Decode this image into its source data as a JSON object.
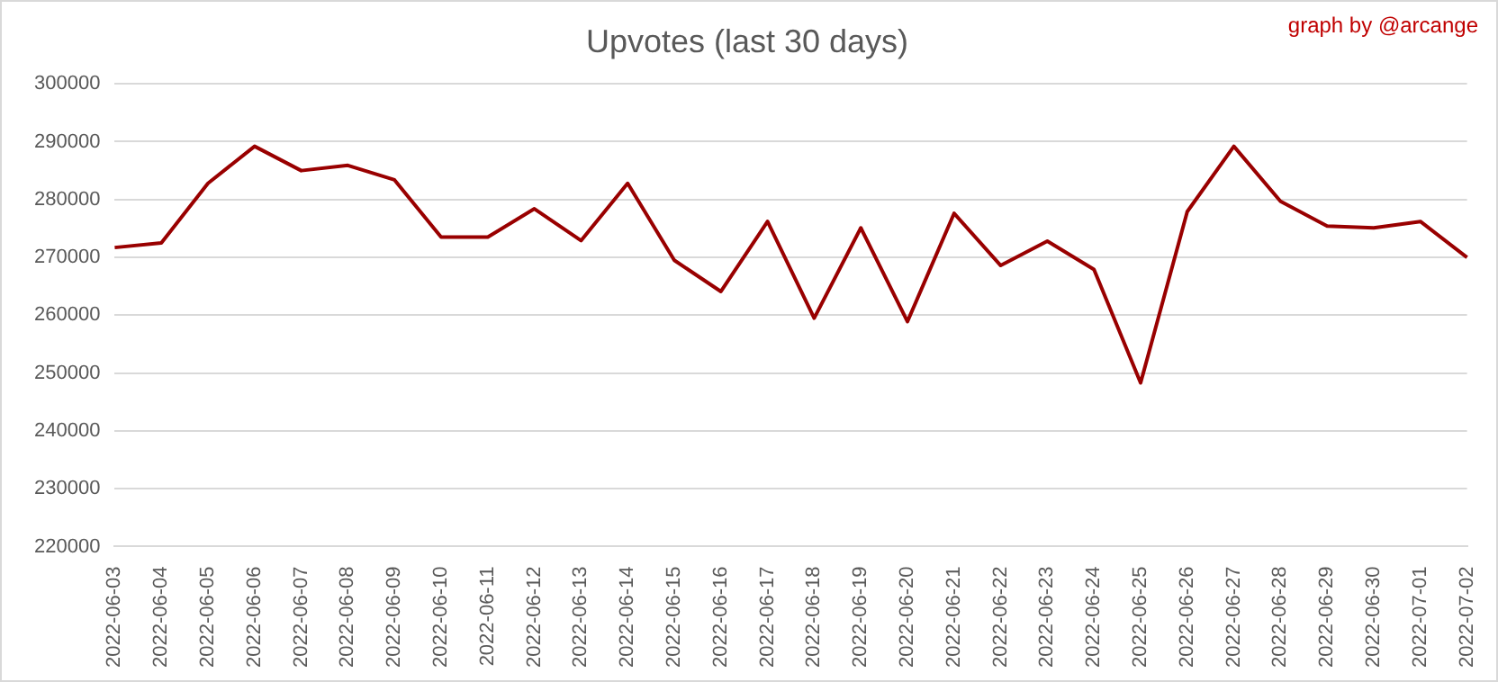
{
  "chart_data": {
    "type": "line",
    "title": "Upvotes (last 30 days)",
    "annotations": [
      "graph by @arcange"
    ],
    "categories": [
      "2022-06-03",
      "2022-06-04",
      "2022-06-05",
      "2022-06-06",
      "2022-06-07",
      "2022-06-08",
      "2022-06-09",
      "2022-06-10",
      "2022-06-11",
      "2022-06-12",
      "2022-06-13",
      "2022-06-14",
      "2022-06-15",
      "2022-06-16",
      "2022-06-17",
      "2022-06-18",
      "2022-06-19",
      "2022-06-20",
      "2022-06-21",
      "2022-06-22",
      "2022-06-23",
      "2022-06-24",
      "2022-06-25",
      "2022-06-26",
      "2022-06-27",
      "2022-06-28",
      "2022-06-29",
      "2022-06-30",
      "2022-07-01",
      "2022-07-02"
    ],
    "values": [
      271700,
      272500,
      282800,
      289200,
      285000,
      285900,
      283400,
      273500,
      273500,
      278400,
      272900,
      282800,
      269500,
      264100,
      276200,
      259500,
      275100,
      258900,
      277600,
      268600,
      272800,
      267900,
      248300,
      277900,
      289200,
      279700,
      275400,
      275100,
      276200,
      270000
    ],
    "color": "#990000",
    "ylim": [
      220000,
      300000
    ],
    "yticks": [
      220000,
      230000,
      240000,
      250000,
      260000,
      270000,
      280000,
      290000,
      300000
    ],
    "grid": "y",
    "legend": false,
    "marker": "none",
    "line_style": "solid"
  }
}
